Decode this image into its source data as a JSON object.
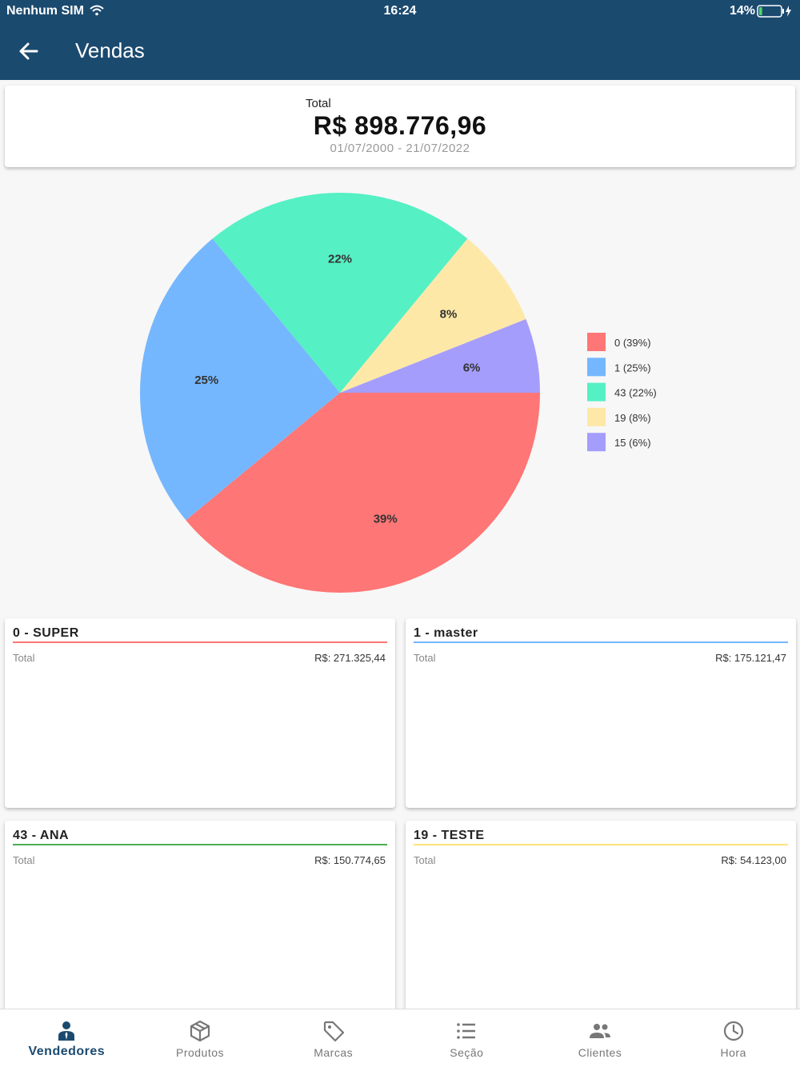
{
  "status_bar": {
    "carrier": "Nenhum SIM",
    "time": "16:24",
    "battery": "14%",
    "battery_level": 0.14
  },
  "appbar": {
    "title": "Vendas",
    "back_icon": "arrow-left-icon"
  },
  "total_card": {
    "label": "Total",
    "value": "R$ 898.776,96",
    "date_range": "01/07/2000 - 21/07/2022"
  },
  "chart_data": {
    "type": "pie",
    "slices": [
      {
        "label": "0 (39%)",
        "value": 39,
        "percent_label": "39%",
        "color": "#fe7675"
      },
      {
        "label": "1 (25%)",
        "value": 25,
        "percent_label": "25%",
        "color": "#75b7fe"
      },
      {
        "label": "43 (22%)",
        "value": 22,
        "percent_label": "22%",
        "color": "#55f0c4"
      },
      {
        "label": "19 (8%)",
        "value": 8,
        "percent_label": "8%",
        "color": "#fee8a8"
      },
      {
        "label": "15 (6%)",
        "value": 6,
        "percent_label": "6%",
        "color": "#a59dfc"
      }
    ],
    "legend_position": "right"
  },
  "sellers": [
    {
      "name": "0 - SUPER",
      "total_label": "Total",
      "total_value": "R$: 271.325,44",
      "color": "#fe7675"
    },
    {
      "name": "1 - master",
      "total_label": "Total",
      "total_value": "R$: 175.121,47",
      "color": "#75b7fe"
    },
    {
      "name": "43 - ANA",
      "total_label": "Total",
      "total_value": "R$: 150.774,65",
      "color": "#4caf50"
    },
    {
      "name": "19 - TESTE",
      "total_label": "Total",
      "total_value": "R$: 54.123,00",
      "color": "#fee27a"
    }
  ],
  "bottom_nav": [
    {
      "label": "Vendedores",
      "icon": "person-icon",
      "active": true
    },
    {
      "label": "Produtos",
      "icon": "box-icon",
      "active": false
    },
    {
      "label": "Marcas",
      "icon": "tag-icon",
      "active": false
    },
    {
      "label": "Seção",
      "icon": "list-icon",
      "active": false
    },
    {
      "label": "Clientes",
      "icon": "people-icon",
      "active": false
    },
    {
      "label": "Hora",
      "icon": "clock-icon",
      "active": false
    }
  ]
}
